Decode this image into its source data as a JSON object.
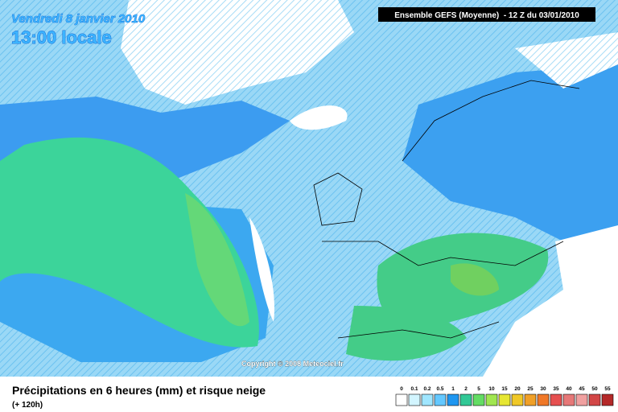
{
  "header": {
    "date": "Vendredi 8 janvier 2010",
    "time": "13:00 locale"
  },
  "model_info": "Ensemble GEFS (Moyenne)  - 12 Z du 03/01/2010",
  "copyright": "Copyright © 2008 Meteociel.fr",
  "caption": {
    "title": "Précipitations en 6 heures (mm) et risque neige",
    "lead": "(+ 120h)"
  },
  "legend": [
    {
      "label": "0",
      "color": "#ffffff"
    },
    {
      "label": "0.1",
      "color": "#d2f5ff"
    },
    {
      "label": "0.2",
      "color": "#a0e6ff"
    },
    {
      "label": "0.5",
      "color": "#64c8ff"
    },
    {
      "label": "1",
      "color": "#1e96f0"
    },
    {
      "label": "2",
      "color": "#32c896"
    },
    {
      "label": "5",
      "color": "#64dc64"
    },
    {
      "label": "10",
      "color": "#a0e650"
    },
    {
      "label": "15",
      "color": "#e6e632"
    },
    {
      "label": "20",
      "color": "#f0c828"
    },
    {
      "label": "25",
      "color": "#f0a028"
    },
    {
      "label": "30",
      "color": "#f07828"
    },
    {
      "label": "35",
      "color": "#e65050"
    },
    {
      "label": "40",
      "color": "#e67878"
    },
    {
      "label": "45",
      "color": "#f0a0a0"
    },
    {
      "label": "50",
      "color": "#d24646"
    },
    {
      "label": "55",
      "color": "#b42828"
    }
  ]
}
